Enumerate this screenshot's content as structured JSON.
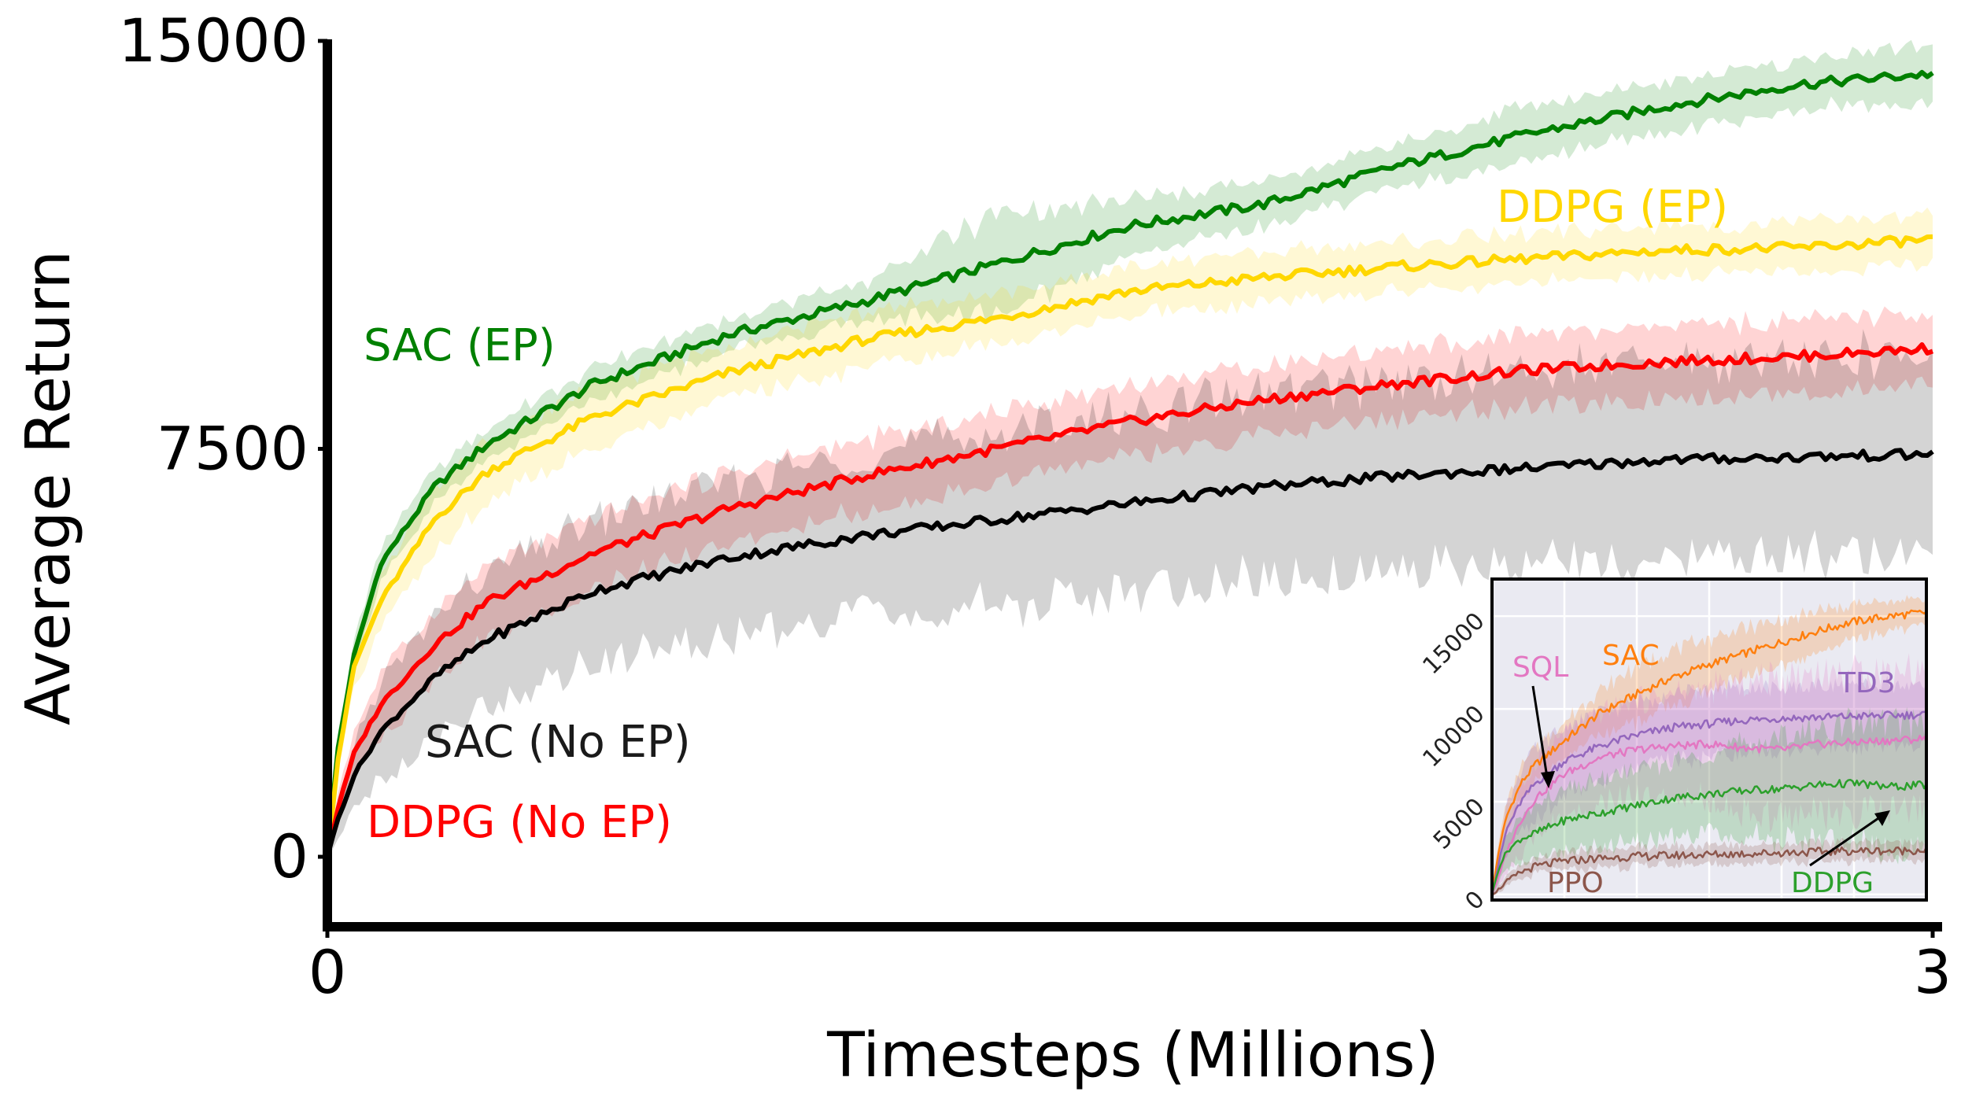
{
  "chart_data": [
    {
      "type": "line",
      "xlabel": "Timesteps (Millions)",
      "ylabel": "Average Return",
      "xlim": [
        0,
        3
      ],
      "ylim": [
        -1200,
        15000
      ],
      "x_ticks": [
        "0",
        "3"
      ],
      "x_tick_values": [
        0,
        3
      ],
      "y_ticks": [
        "0",
        "7500",
        "15000"
      ],
      "y_tick_values": [
        0,
        7500,
        15000
      ],
      "grid": false,
      "x": [
        0,
        0.02,
        0.05,
        0.1,
        0.2,
        0.3,
        0.5,
        0.75,
        1.0,
        1.25,
        1.5,
        1.75,
        2.0,
        2.25,
        2.5,
        2.75,
        3.0
      ],
      "series": [
        {
          "name": "SAC (EP)",
          "color": "#008000",
          "values": [
            0,
            2000,
            3700,
            5400,
            6800,
            7600,
            8700,
            9600,
            10200,
            10900,
            11600,
            12000,
            12700,
            13300,
            13800,
            14200,
            14400
          ],
          "band": [
            200,
            250,
            300,
            300,
            300,
            300,
            300,
            300,
            350,
            900,
            500,
            400,
            400,
            500,
            450,
            450,
            550
          ]
        },
        {
          "name": "DDPG (EP)",
          "color": "#FFD700",
          "values": [
            0,
            1800,
            3500,
            4700,
            6200,
            7100,
            8100,
            8900,
            9500,
            9900,
            10400,
            10650,
            10850,
            11000,
            11150,
            11200,
            11350
          ],
          "band": [
            150,
            300,
            450,
            500,
            550,
            550,
            550,
            500,
            500,
            450,
            450,
            450,
            450,
            450,
            450,
            450,
            450
          ]
        },
        {
          "name": "DDPG (No EP)",
          "color": "#FF0000",
          "values": [
            0,
            900,
            1900,
            2800,
            3900,
            4700,
            5600,
            6400,
            7000,
            7500,
            8000,
            8400,
            8700,
            8950,
            9100,
            9200,
            9350
          ],
          "band": [
            100,
            300,
            400,
            600,
            650,
            650,
            650,
            650,
            650,
            650,
            650,
            650,
            650,
            650,
            650,
            650,
            650
          ]
        },
        {
          "name": "SAC (No EP)",
          "color": "#000000",
          "values": [
            0,
            700,
            1500,
            2300,
            3300,
            4000,
            4900,
            5500,
            5900,
            6200,
            6500,
            6800,
            7000,
            7150,
            7300,
            7350,
            7400
          ],
          "band": [
            100,
            300,
            600,
            900,
            1100,
            1200,
            1300,
            1400,
            1500,
            1600,
            1650,
            1700,
            1750,
            1750,
            1800,
            1800,
            1800
          ]
        }
      ]
    },
    {
      "type": "line",
      "xlim": [
        0,
        3
      ],
      "ylim": [
        -300,
        17000
      ],
      "y_ticks": [
        "0",
        "5000",
        "10000",
        "15000"
      ],
      "y_tick_values": [
        0,
        5000,
        10000,
        15000
      ],
      "grid": true,
      "x": [
        0,
        0.05,
        0.1,
        0.2,
        0.3,
        0.5,
        0.75,
        1.0,
        1.25,
        1.5,
        1.75,
        2.0,
        2.25,
        2.5,
        2.75,
        3.0
      ],
      "series": [
        {
          "name": "SAC",
          "color": "#FF7F0E",
          "values": [
            0,
            2500,
            4200,
            6000,
            7000,
            8300,
            9800,
            10800,
            11700,
            12400,
            13000,
            13600,
            14200,
            14700,
            15000,
            15200
          ],
          "band": [
            200,
            500,
            800,
            900,
            900,
            1000,
            1200,
            1500,
            1500,
            1400,
            1300,
            1200,
            1100,
            900,
            800,
            700
          ]
        },
        {
          "name": "TD3",
          "color": "#9467BD",
          "values": [
            0,
            1800,
            3500,
            5000,
            6000,
            7200,
            8000,
            8600,
            9000,
            9200,
            9400,
            9500,
            9550,
            9600,
            9650,
            9700
          ],
          "band": [
            200,
            800,
            1300,
            1700,
            1800,
            1800,
            1800,
            1800,
            1800,
            1800,
            1700,
            1700,
            1700,
            1600,
            1600,
            1600
          ]
        },
        {
          "name": "SQL",
          "color": "#E377C2",
          "values": [
            0,
            1000,
            2300,
            4000,
            5200,
            6500,
            7400,
            7800,
            8000,
            8100,
            7900,
            7800,
            8100,
            8200,
            8300,
            8400
          ],
          "band": [
            200,
            700,
            1200,
            1700,
            2000,
            2200,
            2400,
            2600,
            2800,
            3000,
            3500,
            3800,
            3800,
            3800,
            3800,
            3800
          ]
        },
        {
          "name": "DDPG",
          "color": "#2CA02C",
          "values": [
            0,
            1500,
            2300,
            3000,
            3300,
            4000,
            4400,
            4800,
            5200,
            5400,
            5600,
            5700,
            5900,
            6000,
            5800,
            5900
          ],
          "band": [
            200,
            700,
            900,
            1200,
            1400,
            1600,
            1800,
            1900,
            2000,
            2200,
            2500,
            2800,
            3000,
            3200,
            3500,
            3400
          ]
        },
        {
          "name": "PPO",
          "color": "#8C564B",
          "values": [
            0,
            300,
            700,
            1200,
            1500,
            1800,
            1950,
            2050,
            2100,
            2150,
            2200,
            2250,
            2300,
            2350,
            2350,
            2400
          ],
          "band": [
            100,
            150,
            250,
            350,
            400,
            450,
            500,
            500,
            500,
            500,
            500,
            500,
            500,
            500,
            500,
            500
          ]
        }
      ]
    }
  ]
}
